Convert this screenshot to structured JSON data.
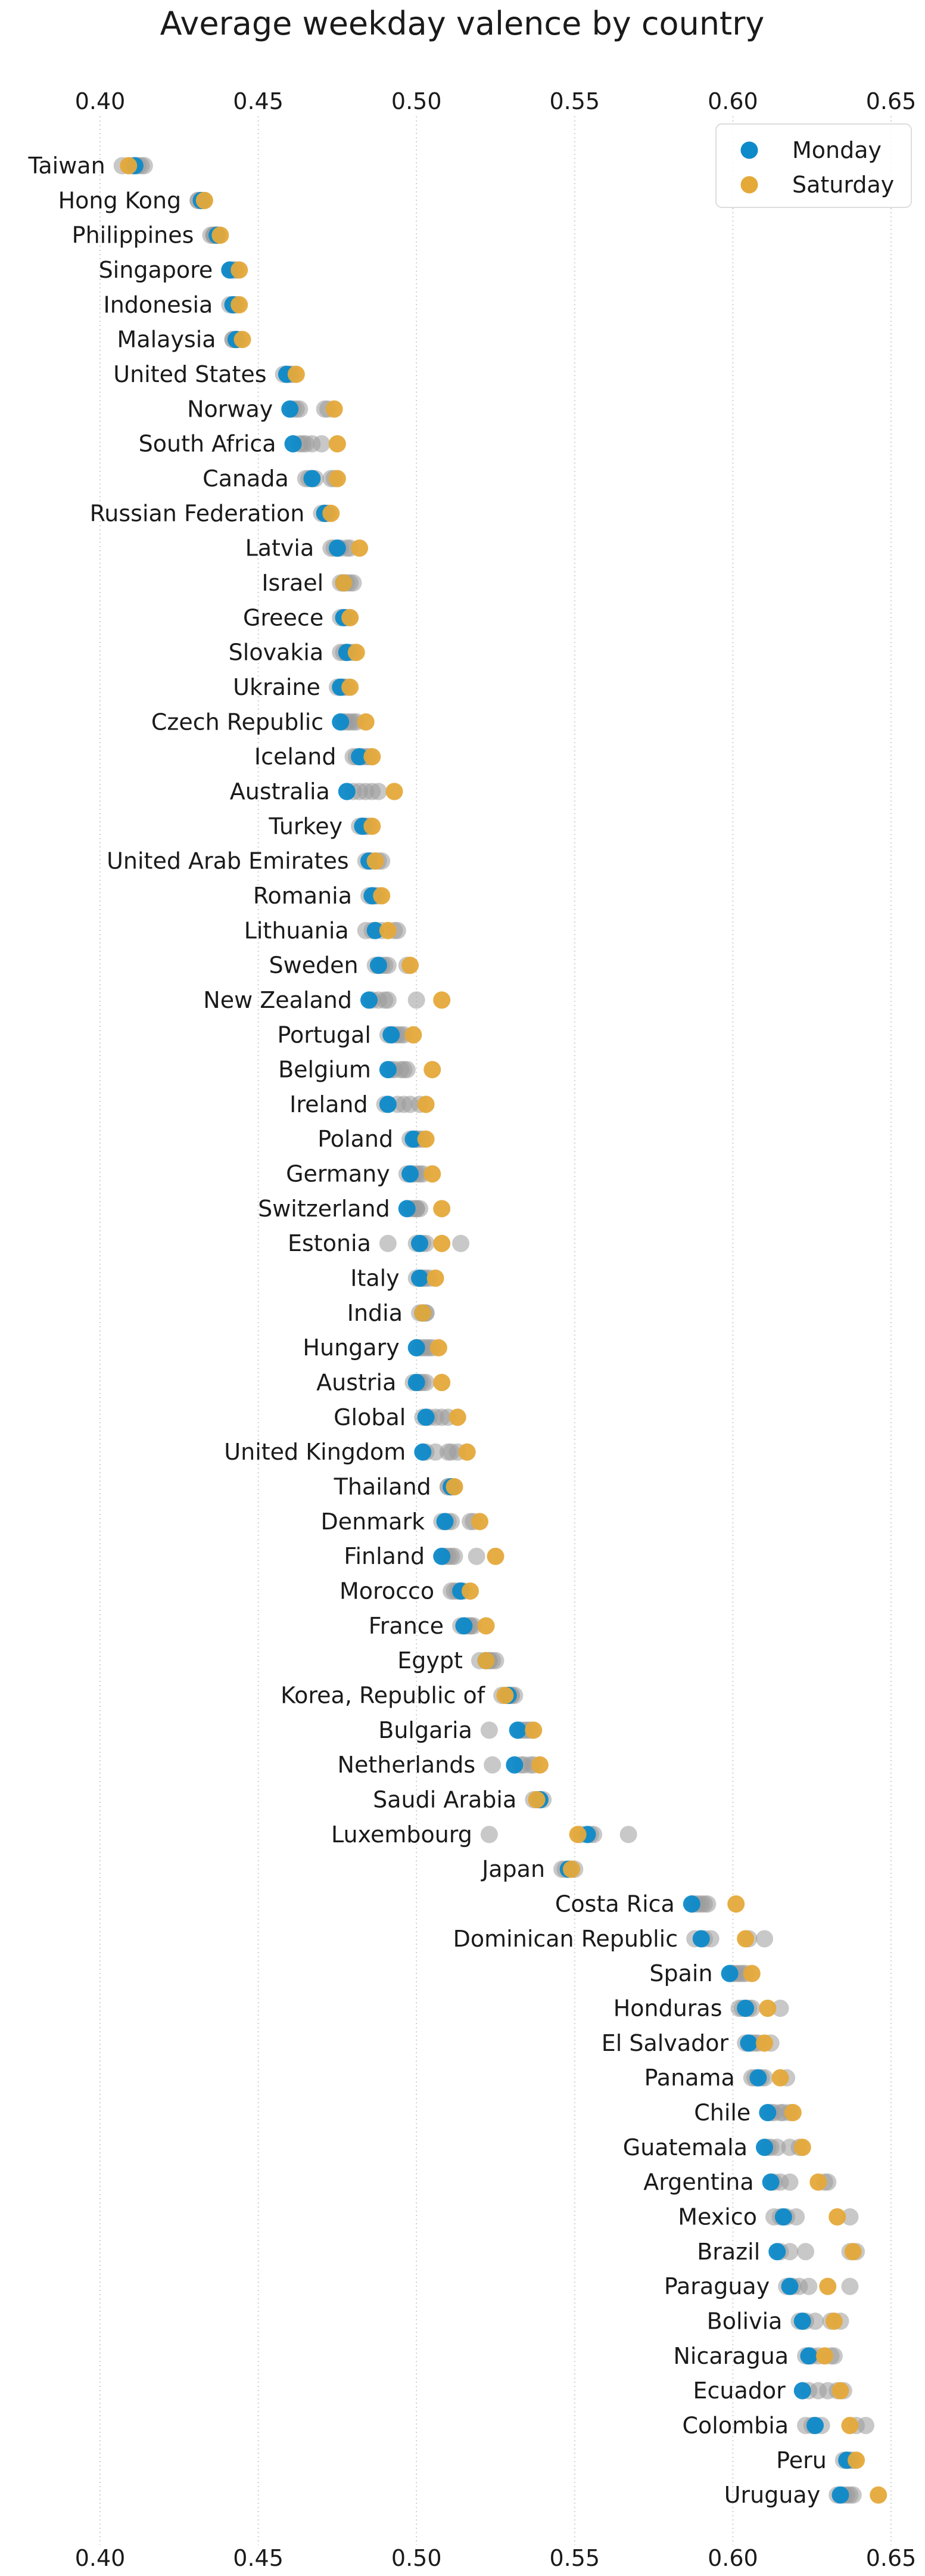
{
  "chart_data": {
    "type": "scatter",
    "title": "Average weekday valence by country",
    "xlabel": "",
    "ylabel": "",
    "xlim": [
      0.4,
      0.65
    ],
    "xticks": [
      "0.40",
      "0.45",
      "0.50",
      "0.55",
      "0.60",
      "0.65"
    ],
    "grid": "vertical dotted",
    "legend_position": "top-right",
    "colors": {
      "monday": "#0d8ac9",
      "saturday": "#e5a93a",
      "other_days": "#9a9a9a"
    },
    "legend": [
      {
        "name": "Monday",
        "color": "#0d8ac9"
      },
      {
        "name": "Saturday",
        "color": "#e5a93a"
      }
    ],
    "rows": [
      {
        "country": "Taiwan",
        "monday": 0.411,
        "saturday": 0.409,
        "others": [
          0.407,
          0.41,
          0.412,
          0.413,
          0.414
        ]
      },
      {
        "country": "Hong Kong",
        "monday": 0.432,
        "saturday": 0.433,
        "others": [
          0.431,
          0.432,
          0.433,
          0.432,
          0.431
        ]
      },
      {
        "country": "Philippines",
        "monday": 0.437,
        "saturday": 0.438,
        "others": [
          0.435,
          0.436,
          0.437,
          0.436,
          0.436
        ]
      },
      {
        "country": "Singapore",
        "monday": 0.441,
        "saturday": 0.444,
        "others": [
          0.442,
          0.443,
          0.442,
          0.443,
          0.441
        ]
      },
      {
        "country": "Indonesia",
        "monday": 0.442,
        "saturday": 0.444,
        "others": [
          0.441,
          0.443,
          0.442,
          0.443,
          0.442
        ]
      },
      {
        "country": "Malaysia",
        "monday": 0.443,
        "saturday": 0.445,
        "others": [
          0.442,
          0.443,
          0.444,
          0.442,
          0.443
        ]
      },
      {
        "country": "United States",
        "monday": 0.459,
        "saturday": 0.462,
        "others": [
          0.458,
          0.46,
          0.461,
          0.46,
          0.459
        ]
      },
      {
        "country": "Norway",
        "monday": 0.46,
        "saturday": 0.474,
        "others": [
          0.462,
          0.463,
          0.471,
          0.472,
          0.461
        ]
      },
      {
        "country": "South Africa",
        "monday": 0.461,
        "saturday": 0.475,
        "others": [
          0.463,
          0.465,
          0.467,
          0.47,
          0.464
        ]
      },
      {
        "country": "Canada",
        "monday": 0.467,
        "saturday": 0.475,
        "others": [
          0.465,
          0.466,
          0.468,
          0.473,
          0.474
        ]
      },
      {
        "country": "Russian Federation",
        "monday": 0.471,
        "saturday": 0.473,
        "others": [
          0.47,
          0.472,
          0.471,
          0.472,
          0.471
        ]
      },
      {
        "country": "Latvia",
        "monday": 0.475,
        "saturday": 0.482,
        "others": [
          0.473,
          0.474,
          0.476,
          0.479,
          0.478
        ]
      },
      {
        "country": "Israel",
        "monday": 0.477,
        "saturday": 0.477,
        "others": [
          0.476,
          0.478,
          0.479,
          0.48,
          0.477
        ]
      },
      {
        "country": "Greece",
        "monday": 0.477,
        "saturday": 0.479,
        "others": [
          0.476,
          0.477,
          0.478,
          0.479,
          0.478
        ]
      },
      {
        "country": "Slovakia",
        "monday": 0.478,
        "saturday": 0.481,
        "others": [
          0.476,
          0.477,
          0.479,
          0.48,
          0.478
        ]
      },
      {
        "country": "Ukraine",
        "monday": 0.476,
        "saturday": 0.479,
        "others": [
          0.475,
          0.477,
          0.476,
          0.478,
          0.477
        ]
      },
      {
        "country": "Czech Republic",
        "monday": 0.476,
        "saturday": 0.484,
        "others": [
          0.477,
          0.478,
          0.479,
          0.48,
          0.481
        ]
      },
      {
        "country": "Iceland",
        "monday": 0.482,
        "saturday": 0.486,
        "others": [
          0.48,
          0.481,
          0.483,
          0.484,
          0.485
        ]
      },
      {
        "country": "Australia",
        "monday": 0.478,
        "saturday": 0.493,
        "others": [
          0.48,
          0.482,
          0.484,
          0.486,
          0.488
        ]
      },
      {
        "country": "Turkey",
        "monday": 0.483,
        "saturday": 0.486,
        "others": [
          0.482,
          0.484,
          0.485,
          0.484,
          0.483
        ]
      },
      {
        "country": "United Arab Emirates",
        "monday": 0.485,
        "saturday": 0.487,
        "others": [
          0.484,
          0.486,
          0.488,
          0.489,
          0.487
        ]
      },
      {
        "country": "Romania",
        "monday": 0.486,
        "saturday": 0.489,
        "others": [
          0.485,
          0.487,
          0.488,
          0.487,
          0.486
        ]
      },
      {
        "country": "Lithuania",
        "monday": 0.487,
        "saturday": 0.491,
        "others": [
          0.484,
          0.486,
          0.489,
          0.493,
          0.494
        ]
      },
      {
        "country": "Sweden",
        "monday": 0.488,
        "saturday": 0.498,
        "others": [
          0.487,
          0.489,
          0.49,
          0.491,
          0.497
        ]
      },
      {
        "country": "New Zealand",
        "monday": 0.485,
        "saturday": 0.508,
        "others": [
          0.486,
          0.488,
          0.49,
          0.491,
          0.5
        ]
      },
      {
        "country": "Portugal",
        "monday": 0.492,
        "saturday": 0.499,
        "others": [
          0.491,
          0.493,
          0.494,
          0.495,
          0.496
        ]
      },
      {
        "country": "Belgium",
        "monday": 0.491,
        "saturday": 0.505,
        "others": [
          0.492,
          0.493,
          0.495,
          0.496,
          0.497
        ]
      },
      {
        "country": "Ireland",
        "monday": 0.491,
        "saturday": 0.503,
        "others": [
          0.49,
          0.494,
          0.496,
          0.498,
          0.501
        ]
      },
      {
        "country": "Poland",
        "monday": 0.499,
        "saturday": 0.503,
        "others": [
          0.498,
          0.5,
          0.501,
          0.502,
          0.5
        ]
      },
      {
        "country": "Germany",
        "monday": 0.498,
        "saturday": 0.505,
        "others": [
          0.497,
          0.499,
          0.5,
          0.501,
          0.502
        ]
      },
      {
        "country": "Switzerland",
        "monday": 0.497,
        "saturday": 0.508,
        "others": [
          0.498,
          0.499,
          0.5,
          0.501,
          0.5
        ]
      },
      {
        "country": "Estonia",
        "monday": 0.501,
        "saturday": 0.508,
        "others": [
          0.491,
          0.5,
          0.502,
          0.503,
          0.514
        ]
      },
      {
        "country": "Italy",
        "monday": 0.501,
        "saturday": 0.506,
        "others": [
          0.5,
          0.502,
          0.503,
          0.504,
          0.502
        ]
      },
      {
        "country": "India",
        "monday": 0.502,
        "saturday": 0.502,
        "others": [
          0.501,
          0.502,
          0.503,
          0.503,
          0.502
        ]
      },
      {
        "country": "Hungary",
        "monday": 0.5,
        "saturday": 0.507,
        "others": [
          0.501,
          0.502,
          0.503,
          0.504,
          0.505
        ]
      },
      {
        "country": "Austria",
        "monday": 0.5,
        "saturday": 0.508,
        "others": [
          0.499,
          0.501,
          0.502,
          0.503,
          0.501
        ]
      },
      {
        "country": "Global",
        "monday": 0.503,
        "saturday": 0.513,
        "others": [
          0.502,
          0.504,
          0.506,
          0.508,
          0.51
        ]
      },
      {
        "country": "United Kingdom",
        "monday": 0.502,
        "saturday": 0.516,
        "others": [
          0.503,
          0.506,
          0.51,
          0.511,
          0.513
        ]
      },
      {
        "country": "Thailand",
        "monday": 0.511,
        "saturday": 0.512,
        "others": [
          0.51,
          0.511,
          0.512,
          0.511,
          0.51
        ]
      },
      {
        "country": "Denmark",
        "monday": 0.509,
        "saturday": 0.52,
        "others": [
          0.508,
          0.51,
          0.511,
          0.517,
          0.518
        ]
      },
      {
        "country": "Finland",
        "monday": 0.508,
        "saturday": 0.525,
        "others": [
          0.509,
          0.51,
          0.512,
          0.519,
          0.511
        ]
      },
      {
        "country": "Morocco",
        "monday": 0.514,
        "saturday": 0.517,
        "others": [
          0.511,
          0.512,
          0.513,
          0.514,
          0.515
        ]
      },
      {
        "country": "France",
        "monday": 0.515,
        "saturday": 0.522,
        "others": [
          0.514,
          0.516,
          0.517,
          0.518,
          0.517
        ]
      },
      {
        "country": "Egypt",
        "monday": 0.522,
        "saturday": 0.522,
        "others": [
          0.52,
          0.523,
          0.524,
          0.525,
          0.523
        ]
      },
      {
        "country": "Korea, Republic of",
        "monday": 0.529,
        "saturday": 0.528,
        "others": [
          0.527,
          0.529,
          0.53,
          0.531,
          0.53
        ]
      },
      {
        "country": "Bulgaria",
        "monday": 0.532,
        "saturday": 0.537,
        "others": [
          0.523,
          0.533,
          0.534,
          0.535,
          0.536
        ]
      },
      {
        "country": "Netherlands",
        "monday": 0.531,
        "saturday": 0.539,
        "others": [
          0.524,
          0.533,
          0.534,
          0.536,
          0.537
        ]
      },
      {
        "country": "Saudi Arabia",
        "monday": 0.539,
        "saturday": 0.538,
        "others": [
          0.537,
          0.538,
          0.539,
          0.54,
          0.539
        ]
      },
      {
        "country": "Luxembourg",
        "monday": 0.554,
        "saturday": 0.551,
        "others": [
          0.523,
          0.552,
          0.555,
          0.556,
          0.567
        ]
      },
      {
        "country": "Japan",
        "monday": 0.548,
        "saturday": 0.549,
        "others": [
          0.546,
          0.547,
          0.548,
          0.549,
          0.55
        ]
      },
      {
        "country": "Costa Rica",
        "monday": 0.587,
        "saturday": 0.601,
        "others": [
          0.588,
          0.589,
          0.59,
          0.592,
          0.591
        ]
      },
      {
        "country": "Dominican Republic",
        "monday": 0.59,
        "saturday": 0.604,
        "others": [
          0.588,
          0.591,
          0.593,
          0.605,
          0.61
        ]
      },
      {
        "country": "Spain",
        "monday": 0.599,
        "saturday": 0.606,
        "others": [
          0.6,
          0.601,
          0.603,
          0.604,
          0.602
        ]
      },
      {
        "country": "Honduras",
        "monday": 0.604,
        "saturday": 0.611,
        "others": [
          0.602,
          0.603,
          0.605,
          0.615,
          0.606
        ]
      },
      {
        "country": "El Salvador",
        "monday": 0.605,
        "saturday": 0.61,
        "others": [
          0.604,
          0.606,
          0.608,
          0.612,
          0.607
        ]
      },
      {
        "country": "Panama",
        "monday": 0.608,
        "saturday": 0.615,
        "others": [
          0.606,
          0.607,
          0.609,
          0.617,
          0.61
        ]
      },
      {
        "country": "Chile",
        "monday": 0.611,
        "saturday": 0.619,
        "others": [
          0.612,
          0.613,
          0.615,
          0.616,
          0.618
        ]
      },
      {
        "country": "Guatemala",
        "monday": 0.61,
        "saturday": 0.622,
        "others": [
          0.611,
          0.612,
          0.614,
          0.618,
          0.621
        ]
      },
      {
        "country": "Argentina",
        "monday": 0.612,
        "saturday": 0.627,
        "others": [
          0.613,
          0.615,
          0.618,
          0.629,
          0.63
        ]
      },
      {
        "country": "Mexico",
        "monday": 0.616,
        "saturday": 0.633,
        "others": [
          0.613,
          0.615,
          0.617,
          0.62,
          0.637
        ]
      },
      {
        "country": "Brazil",
        "monday": 0.614,
        "saturday": 0.638,
        "others": [
          0.615,
          0.618,
          0.623,
          0.637,
          0.639
        ]
      },
      {
        "country": "Paraguay",
        "monday": 0.618,
        "saturday": 0.63,
        "others": [
          0.617,
          0.619,
          0.621,
          0.624,
          0.637
        ]
      },
      {
        "country": "Bolivia",
        "monday": 0.622,
        "saturday": 0.632,
        "others": [
          0.621,
          0.623,
          0.626,
          0.631,
          0.634
        ]
      },
      {
        "country": "Nicaragua",
        "monday": 0.624,
        "saturday": 0.629,
        "others": [
          0.623,
          0.625,
          0.627,
          0.631,
          0.632
        ]
      },
      {
        "country": "Ecuador",
        "monday": 0.622,
        "saturday": 0.634,
        "others": [
          0.624,
          0.627,
          0.63,
          0.633,
          0.635
        ]
      },
      {
        "country": "Colombia",
        "monday": 0.626,
        "saturday": 0.637,
        "others": [
          0.623,
          0.625,
          0.628,
          0.639,
          0.642
        ]
      },
      {
        "country": "Peru",
        "monday": 0.636,
        "saturday": 0.639,
        "others": [
          0.635,
          0.637,
          0.638,
          0.637,
          0.636
        ]
      },
      {
        "country": "Uruguay",
        "monday": 0.634,
        "saturday": 0.646,
        "others": [
          0.633,
          0.635,
          0.636,
          0.638,
          0.637
        ]
      }
    ]
  }
}
